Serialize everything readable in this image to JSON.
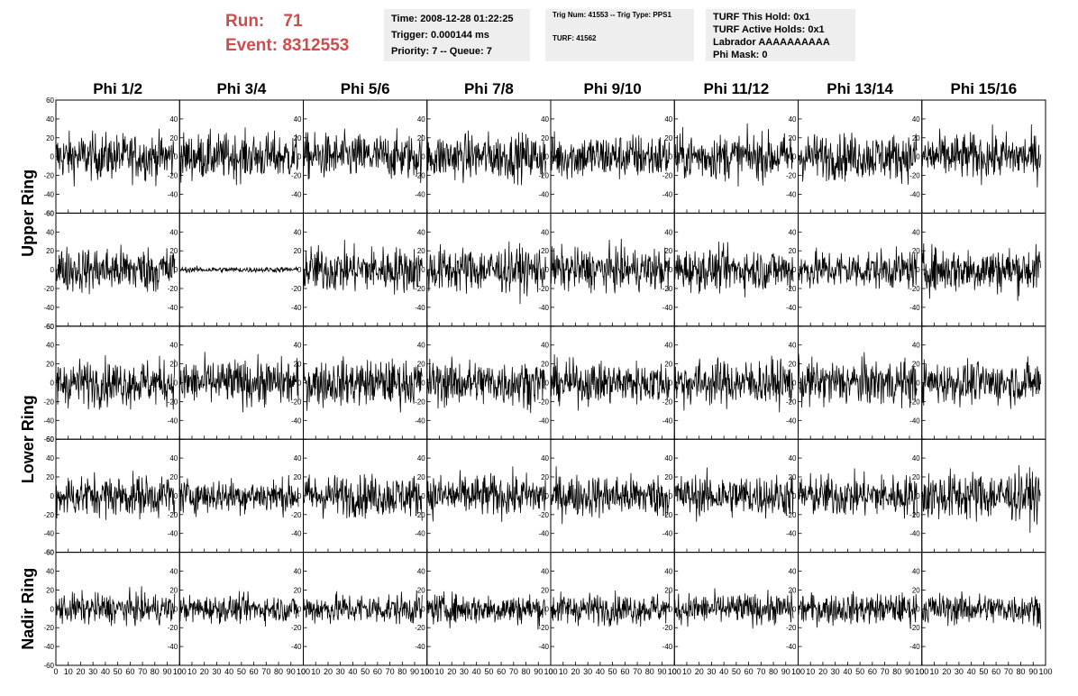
{
  "run_box": {
    "run_label": "Run:",
    "run_value": "71",
    "event_label": "Event:",
    "event_value": "8312553"
  },
  "info_panels": {
    "time": "Time: 2008-12-28 01:22:25",
    "trigger": "Trigger: 0.000144 ms",
    "priority": "Priority: 7 -- Queue: 7",
    "trig_num": "Trig Num: 41553 -- Trig Type: PPS1",
    "turf": "TURF: 41562",
    "turf_this_hold": "TURF This Hold: 0x1",
    "turf_active_holds": "TURF Active Holds: 0x1",
    "labrador": "Labrador AAAAAAAAAA",
    "phi_mask": "Phi Mask: 0"
  },
  "colors": {
    "run_text": "#d04c4c",
    "panel_bg": "#eeeeee",
    "trace": "#000000"
  },
  "column_titles": [
    "Phi 1/2",
    "Phi 3/4",
    "Phi 5/6",
    "Phi 7/8",
    "Phi 9/10",
    "Phi 11/12",
    "Phi 13/14",
    "Phi 15/16"
  ],
  "row_titles": [
    "Upper Ring",
    "Lower Ring",
    "Nadir Ring"
  ],
  "chart_data": {
    "type": "line",
    "description_rows": [
      "Upper Ring (top)",
      "Upper Ring (bottom)",
      "Lower Ring (top)",
      "Lower Ring (bottom)",
      "Nadir Ring"
    ],
    "xlim": [
      0,
      100
    ],
    "ylim": [
      -60,
      60
    ],
    "x_ticks": [
      0,
      10,
      20,
      30,
      40,
      50,
      60,
      70,
      80,
      90,
      100
    ],
    "y_ticks": [
      -60,
      -40,
      -20,
      0,
      20,
      40,
      60
    ],
    "grid": false,
    "panels_rows": 5,
    "panels_cols": 8,
    "samples_per_trace": 260,
    "trace_x_max": 96,
    "trace_amplitudes": [
      [
        12,
        12,
        12,
        12,
        12,
        12,
        12,
        12
      ],
      [
        12,
        1.5,
        12,
        12,
        11,
        11,
        10,
        12
      ],
      [
        12,
        12,
        12,
        12,
        11,
        12,
        12,
        11
      ],
      [
        11,
        9,
        11,
        11,
        11,
        11,
        11,
        13
      ],
      [
        8,
        7,
        8,
        8,
        8,
        8,
        8,
        8
      ]
    ]
  }
}
